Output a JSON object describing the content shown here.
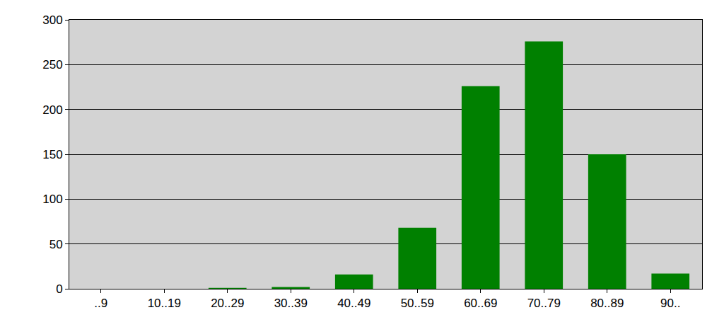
{
  "chart_data": {
    "type": "bar",
    "categories": [
      "..9",
      "10..19",
      "20..29",
      "30..39",
      "40..49",
      "50..59",
      "60..69",
      "70..79",
      "80..89",
      "90.."
    ],
    "values": [
      0,
      0,
      1,
      2,
      16,
      68,
      226,
      276,
      150,
      17
    ],
    "color": "#008000",
    "ylim": [
      0,
      300
    ],
    "yticks": [
      0,
      50,
      100,
      150,
      200,
      250,
      300
    ],
    "grid": true
  }
}
